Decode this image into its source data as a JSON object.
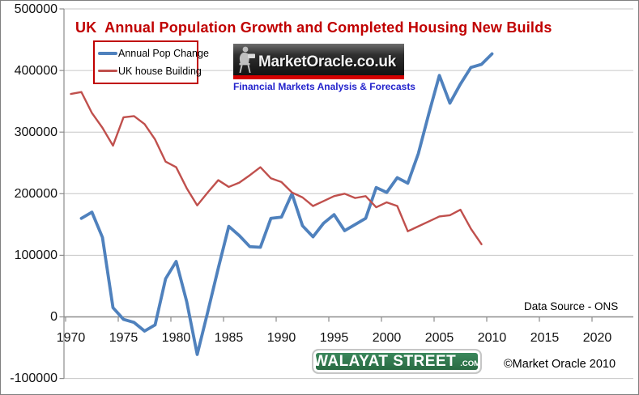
{
  "title": "UK  Annual Population Growth and Completed Housing New Builds",
  "legend": {
    "items": [
      {
        "label": "Annual Pop Change",
        "color": "#4F81BD",
        "thickness": 4
      },
      {
        "label": "UK house Building",
        "color": "#C0504D",
        "thickness": 3
      }
    ]
  },
  "logo": {
    "brand": "MarketOracle.co.uk",
    "tagline": "Financial Markets Analysis & Forecasts",
    "figure_icon": "seated-reader-icon"
  },
  "annotations": {
    "data_source": "Data Source - ONS",
    "copyright": "©Market Oracle 2010"
  },
  "street_sign": {
    "main": "WALAYAT STREET",
    "suffix": ".COM"
  },
  "colors": {
    "title": "#C00000",
    "pop_change_line": "#4F81BD",
    "house_building_line": "#C0504D",
    "gridline": "#C6C6C6",
    "axis": "#8C8C8C",
    "legend_border": "#C00000",
    "logo_stripe": "#D40000",
    "tagline_blue": "#2222CC",
    "sign_green": "#2F7B4E"
  },
  "chart_data": {
    "type": "line",
    "title": "UK  Annual Population Growth and Completed Housing New Builds",
    "xlabel": "",
    "ylabel": "",
    "ylim": [
      -100000,
      500000
    ],
    "grid": "horizontal",
    "legend_position": "top-left",
    "y_ticks": [
      500000,
      400000,
      300000,
      200000,
      100000,
      0,
      -100000
    ],
    "x_ticks": [
      1970,
      1975,
      1980,
      1985,
      1990,
      1995,
      2000,
      2005,
      2010,
      2015,
      2020
    ],
    "x": [
      1970,
      1971,
      1972,
      1973,
      1974,
      1975,
      1976,
      1977,
      1978,
      1979,
      1980,
      1981,
      1982,
      1983,
      1984,
      1985,
      1986,
      1987,
      1988,
      1989,
      1990,
      1991,
      1992,
      1993,
      1994,
      1995,
      1996,
      1997,
      1998,
      1999,
      2000,
      2001,
      2002,
      2003,
      2004,
      2005,
      2006,
      2007,
      2008,
      2009,
      2010
    ],
    "series": [
      {
        "name": "Annual Pop Change",
        "color": "#4F81BD",
        "stroke_width": 3.8,
        "values": [
          null,
          160000,
          170000,
          129000,
          15000,
          -4000,
          -9000,
          -23000,
          -13000,
          62000,
          90000,
          25000,
          -61000,
          8000,
          79000,
          147000,
          132000,
          114000,
          113000,
          160000,
          162000,
          200000,
          148000,
          130000,
          152000,
          166000,
          140000,
          150000,
          160000,
          210000,
          202000,
          226000,
          217000,
          265000,
          330000,
          392000,
          347000,
          378000,
          405000,
          410000,
          427000
        ]
      },
      {
        "name": "UK house Building",
        "color": "#C0504D",
        "stroke_width": 2.4,
        "values": [
          362000,
          365000,
          331000,
          307000,
          278000,
          324000,
          326000,
          313000,
          288000,
          252000,
          243000,
          209000,
          181000,
          202000,
          222000,
          211000,
          218000,
          230000,
          243000,
          225000,
          219000,
          202000,
          194000,
          180000,
          188000,
          196000,
          200000,
          193000,
          196000,
          178000,
          186000,
          180000,
          139000,
          147000,
          155000,
          163000,
          165000,
          174000,
          143000,
          118000,
          null
        ]
      }
    ]
  }
}
